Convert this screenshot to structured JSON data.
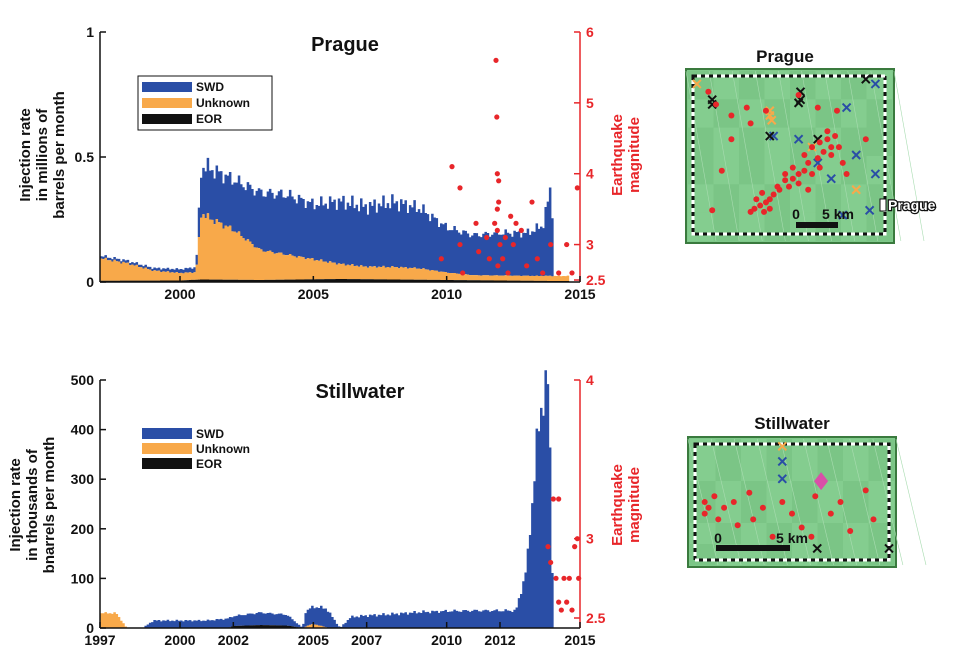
{
  "colors": {
    "swd": "#2a4ea6",
    "unknown": "#f8a94a",
    "eor": "#111111",
    "quake": "#e8262a",
    "map_fill": "#7fc98a",
    "map_border": "#3a7a3e"
  },
  "chart_data": [
    {
      "type": "area",
      "title": "Prague",
      "ylabel": [
        "Injection rate",
        "in millions of",
        "barrels per month"
      ],
      "ylabel2": [
        "Earthquake",
        "magnitude"
      ],
      "ylim": [
        0,
        1
      ],
      "yticks": [
        0,
        0.5,
        1
      ],
      "y2lim": [
        2.5,
        6
      ],
      "y2ticks": [
        2.5,
        3,
        4,
        5,
        6
      ],
      "xlim": [
        1997,
        2015
      ],
      "xticks": [
        2000,
        2005,
        2010,
        2015
      ],
      "legend": {
        "position": "upper-left",
        "entries": [
          "SWD",
          "Unknown",
          "EOR"
        ]
      },
      "series": [
        {
          "name": "EOR",
          "x": [
            1997,
            2000,
            2000.8,
            2003,
            2006,
            2008,
            2010,
            2012,
            2014
          ],
          "values": [
            0.005,
            0.006,
            0.01,
            0.008,
            0.012,
            0.01,
            0.008,
            0.006,
            0.004
          ]
        },
        {
          "name": "Unknown",
          "x": [
            1997,
            1998,
            1999,
            2000,
            2000.6,
            2000.8,
            2001,
            2002,
            2003,
            2004,
            2005,
            2006,
            2007,
            2008,
            2009,
            2010,
            2011,
            2012,
            2013,
            2014
          ],
          "values": [
            0.09,
            0.07,
            0.04,
            0.03,
            0.03,
            0.27,
            0.25,
            0.2,
            0.12,
            0.1,
            0.08,
            0.06,
            0.05,
            0.05,
            0.045,
            0.03,
            0.02,
            0.02,
            0.02,
            0.02
          ]
        },
        {
          "name": "SWD",
          "x": [
            1997,
            1998,
            1999,
            2000,
            2000.6,
            2000.8,
            2001,
            2002,
            2003,
            2004,
            2005,
            2006,
            2007,
            2008,
            2009,
            2010,
            2011,
            2012,
            2013,
            2013.6,
            2013.9,
            2014
          ],
          "values": [
            0.01,
            0.01,
            0.01,
            0.015,
            0.02,
            0.18,
            0.2,
            0.2,
            0.23,
            0.24,
            0.22,
            0.25,
            0.24,
            0.26,
            0.24,
            0.18,
            0.16,
            0.17,
            0.17,
            0.2,
            0.35,
            0.2
          ]
        }
      ],
      "earthquakes": {
        "x": [
          2009.8,
          2010.2,
          2010.5,
          2010.5,
          2010.6,
          2011.1,
          2011.2,
          2011.5,
          2011.6,
          2011.8,
          2011.85,
          2011.88,
          2011.9,
          2011.9,
          2011.9,
          2011.92,
          2011.95,
          2011.95,
          2012.0,
          2012.1,
          2012.2,
          2012.3,
          2012.4,
          2012.5,
          2012.6,
          2012.8,
          2013.0,
          2013.2,
          2013.4,
          2013.6,
          2013.9,
          2014.2,
          2014.5,
          2014.7,
          2014.9
        ],
        "values": [
          2.8,
          4.1,
          3.8,
          3.0,
          2.6,
          3.3,
          2.9,
          3.1,
          2.8,
          3.3,
          5.6,
          4.8,
          4.0,
          3.5,
          3.2,
          2.7,
          3.9,
          3.6,
          3.0,
          2.8,
          3.1,
          2.6,
          3.4,
          3.0,
          3.3,
          3.2,
          2.7,
          3.6,
          2.8,
          2.6,
          3.0,
          2.6,
          3.0,
          2.6,
          3.8
        ]
      }
    },
    {
      "type": "area",
      "title": "Stillwater",
      "ylabel": [
        "Injection rate",
        "in thousands of",
        "bnarrels per month"
      ],
      "ylabel2": [
        "Earthquake",
        "magnitude"
      ],
      "ylim": [
        0,
        500
      ],
      "yticks": [
        0,
        100,
        200,
        300,
        400,
        500
      ],
      "y2lim": [
        2.5,
        4
      ],
      "y2ticks": [
        2.5,
        3,
        4
      ],
      "xlim": [
        1997,
        2015
      ],
      "xticks": [
        1997,
        2000,
        2002,
        2005,
        2007,
        2010,
        2012,
        2015
      ],
      "legend": {
        "position": "upper-left",
        "entries": [
          "SWD",
          "Unknown",
          "EOR"
        ]
      },
      "series": [
        {
          "name": "EOR",
          "x": [
            2001.8,
            2002,
            2003,
            2004,
            2004.6
          ],
          "values": [
            0,
            4,
            6,
            5,
            0
          ]
        },
        {
          "name": "Unknown",
          "x": [
            1997,
            1997.6,
            1998,
            2004.6,
            2004.8,
            2005,
            2005.6,
            2006
          ],
          "values": [
            30,
            30,
            0,
            0,
            5,
            8,
            0,
            0
          ]
        },
        {
          "name": "SWD",
          "x": [
            1998.6,
            1999,
            2000,
            2001,
            2002,
            2002.4,
            2003,
            2004,
            2004.6,
            2004.7,
            2005,
            2005.5,
            2006,
            2006.4,
            2007,
            2008,
            2009,
            2010,
            2011,
            2012,
            2012.6,
            2013.0,
            2013.2,
            2013.4,
            2013.6,
            2013.8,
            2013.9,
            2014.0
          ],
          "values": [
            0,
            15,
            15,
            15,
            20,
            22,
            25,
            22,
            0,
            30,
            35,
            38,
            0,
            22,
            25,
            28,
            32,
            34,
            35,
            35,
            35,
            120,
            250,
            380,
            470,
            490,
            300,
            0
          ]
        }
      ],
      "earthquakes": {
        "x": [
          2013.8,
          2013.9,
          2014.0,
          2014.1,
          2014.2,
          2014.2,
          2014.3,
          2014.4,
          2014.5,
          2014.6,
          2014.7,
          2014.8,
          2014.9,
          2014.95
        ],
        "values": [
          2.95,
          2.85,
          3.25,
          2.75,
          3.25,
          2.6,
          2.55,
          2.75,
          2.6,
          2.75,
          2.55,
          2.95,
          3.0,
          2.75
        ]
      }
    }
  ],
  "maps": [
    {
      "title": "Prague",
      "scale_label_0": "0",
      "scale_label_5": "5 km",
      "place_label": "Prague",
      "quakes": [
        [
          0.08,
          0.1
        ],
        [
          0.12,
          0.18
        ],
        [
          0.2,
          0.25
        ],
        [
          0.28,
          0.2
        ],
        [
          0.38,
          0.22
        ],
        [
          0.55,
          0.12
        ],
        [
          0.65,
          0.2
        ],
        [
          0.75,
          0.22
        ],
        [
          0.7,
          0.35
        ],
        [
          0.72,
          0.45
        ],
        [
          0.68,
          0.48
        ],
        [
          0.65,
          0.52
        ],
        [
          0.6,
          0.55
        ],
        [
          0.58,
          0.6
        ],
        [
          0.55,
          0.62
        ],
        [
          0.52,
          0.65
        ],
        [
          0.5,
          0.7
        ],
        [
          0.45,
          0.72
        ],
        [
          0.42,
          0.75
        ],
        [
          0.4,
          0.78
        ],
        [
          0.38,
          0.8
        ],
        [
          0.35,
          0.82
        ],
        [
          0.32,
          0.84
        ],
        [
          0.3,
          0.86
        ],
        [
          0.33,
          0.78
        ],
        [
          0.36,
          0.74
        ],
        [
          0.62,
          0.45
        ],
        [
          0.66,
          0.42
        ],
        [
          0.7,
          0.4
        ],
        [
          0.74,
          0.38
        ],
        [
          0.78,
          0.55
        ],
        [
          0.8,
          0.62
        ],
        [
          0.6,
          0.72
        ],
        [
          0.55,
          0.68
        ],
        [
          0.48,
          0.66
        ],
        [
          0.44,
          0.7
        ],
        [
          0.4,
          0.84
        ],
        [
          0.37,
          0.86
        ],
        [
          0.58,
          0.5
        ],
        [
          0.62,
          0.62
        ],
        [
          0.66,
          0.58
        ],
        [
          0.72,
          0.5
        ],
        [
          0.76,
          0.45
        ],
        [
          0.52,
          0.58
        ],
        [
          0.48,
          0.62
        ],
        [
          0.3,
          0.3
        ],
        [
          0.2,
          0.4
        ],
        [
          0.15,
          0.6
        ],
        [
          0.9,
          0.4
        ],
        [
          0.1,
          0.85
        ]
      ],
      "swd_wells": [
        [
          0.42,
          0.38
        ],
        [
          0.55,
          0.4
        ],
        [
          0.65,
          0.55
        ],
        [
          0.8,
          0.2
        ],
        [
          0.85,
          0.5
        ],
        [
          0.72,
          0.65
        ],
        [
          0.95,
          0.62
        ],
        [
          0.78,
          0.88
        ],
        [
          0.92,
          0.85
        ],
        [
          0.95,
          0.05
        ]
      ],
      "eor_wells": [
        [
          0.1,
          0.15
        ],
        [
          0.1,
          0.18
        ],
        [
          0.56,
          0.1
        ],
        [
          0.56,
          0.15
        ],
        [
          0.55,
          0.17
        ],
        [
          0.65,
          0.4
        ],
        [
          0.4,
          0.38
        ],
        [
          0.9,
          0.02
        ]
      ],
      "unknown_wells": [
        [
          0.4,
          0.22
        ],
        [
          0.4,
          0.25
        ],
        [
          0.41,
          0.28
        ],
        [
          0.62,
          0.45
        ],
        [
          0.85,
          0.72
        ],
        [
          0.02,
          0.05
        ]
      ]
    },
    {
      "title": "Stillwater",
      "scale_label_0": "0",
      "scale_label_5": "5 km",
      "quakes": [
        [
          0.05,
          0.5
        ],
        [
          0.07,
          0.55
        ],
        [
          0.05,
          0.6
        ],
        [
          0.1,
          0.45
        ],
        [
          0.15,
          0.55
        ],
        [
          0.2,
          0.5
        ],
        [
          0.22,
          0.7
        ],
        [
          0.3,
          0.65
        ],
        [
          0.35,
          0.55
        ],
        [
          0.45,
          0.5
        ],
        [
          0.5,
          0.6
        ],
        [
          0.62,
          0.45
        ],
        [
          0.7,
          0.6
        ],
        [
          0.75,
          0.5
        ],
        [
          0.8,
          0.75
        ],
        [
          0.88,
          0.4
        ],
        [
          0.92,
          0.65
        ],
        [
          0.4,
          0.8
        ],
        [
          0.6,
          0.8
        ],
        [
          0.12,
          0.65
        ],
        [
          0.28,
          0.42
        ],
        [
          0.55,
          0.72
        ]
      ],
      "swd_wells": [
        [
          0.45,
          0.15
        ],
        [
          0.45,
          0.3
        ]
      ],
      "eor_wells": [
        [
          0.63,
          0.9
        ],
        [
          1.0,
          0.9
        ]
      ],
      "unknown_wells": [
        [
          0.45,
          0.02
        ]
      ],
      "station": [
        0.65,
        0.32
      ]
    }
  ]
}
